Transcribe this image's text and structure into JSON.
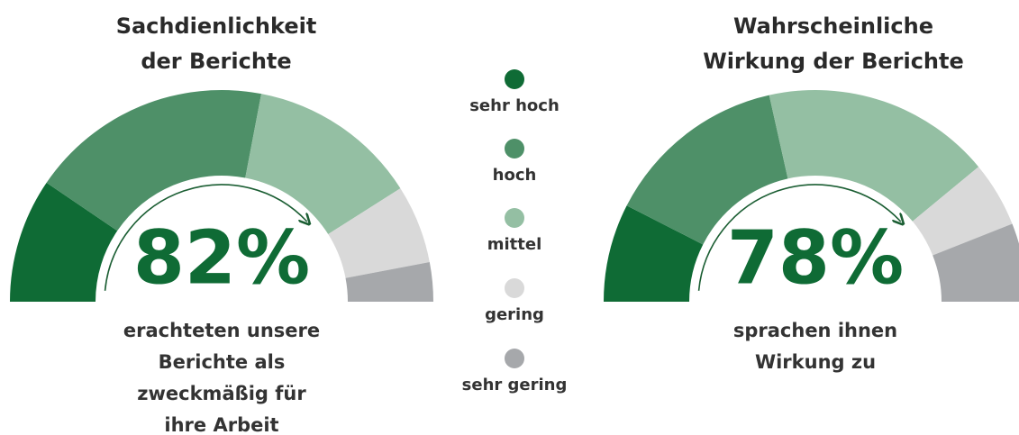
{
  "legend": {
    "categories": [
      "sehr hoch",
      "hoch",
      "mittel",
      "gering",
      "sehr gering"
    ],
    "colors": [
      "#0f6b35",
      "#4e9068",
      "#94bfa3",
      "#d9d9d9",
      "#a6a8ab"
    ]
  },
  "chart_data": [
    {
      "type": "gauge",
      "title": [
        "Sachdienlichkeit",
        "der Berichte"
      ],
      "values": [
        19,
        37,
        26,
        12,
        6
      ],
      "headline": "82%",
      "caption": [
        "erachteten unsere",
        "Berichte als",
        "zweckmäßig für",
        "ihre Arbeit"
      ]
    },
    {
      "type": "gauge",
      "title": [
        "Wahrscheinliche",
        "Wirkung der Berichte"
      ],
      "values": [
        15,
        28,
        35,
        10,
        12
      ],
      "headline": "78%",
      "caption": [
        "sprachen ihnen",
        "Wirkung zu"
      ]
    }
  ]
}
